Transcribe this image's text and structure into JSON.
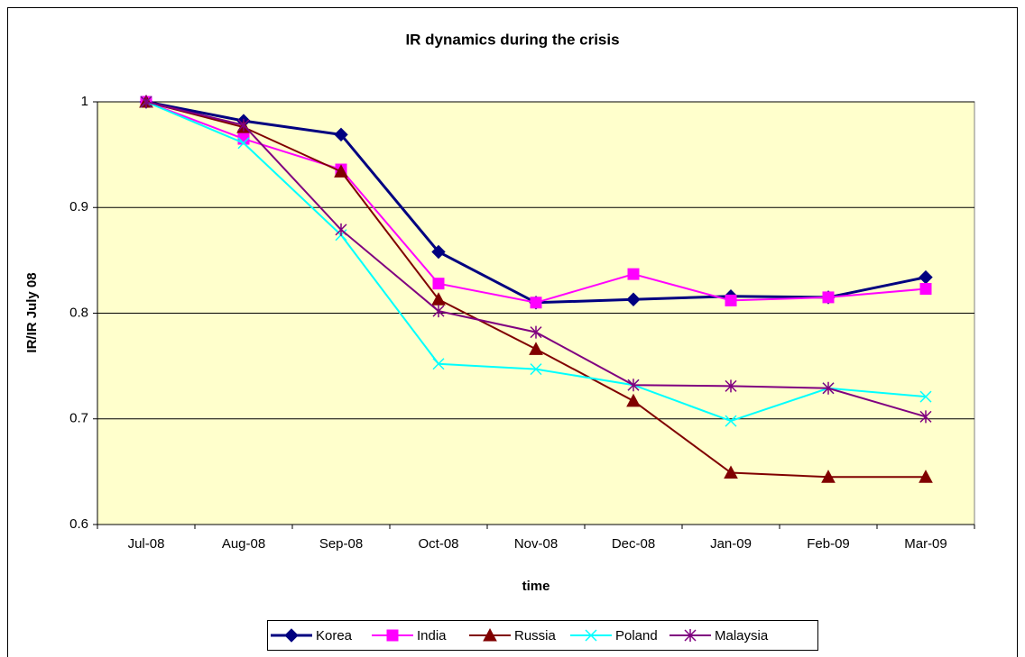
{
  "chart_data": {
    "type": "line",
    "title": "IR dynamics during the crisis",
    "x_label": "time",
    "y_label": "IR/IR July 08",
    "categories": [
      "Jul-08",
      "Aug-08",
      "Sep-08",
      "Oct-08",
      "Nov-08",
      "Dec-08",
      "Jan-09",
      "Feb-09",
      "Mar-09"
    ],
    "series": [
      {
        "name": "Korea",
        "color": "#000080",
        "marker": "diamond",
        "values": [
          1,
          0.982,
          0.969,
          0.858,
          0.81,
          0.813,
          0.816,
          0.815,
          0.834
        ]
      },
      {
        "name": "India",
        "color": "#ff00ff",
        "marker": "square",
        "values": [
          1,
          0.965,
          0.936,
          0.828,
          0.81,
          0.837,
          0.812,
          0.815,
          0.823
        ]
      },
      {
        "name": "Russia",
        "color": "#800000",
        "marker": "triangle",
        "values": [
          1,
          0.976,
          0.934,
          0.813,
          0.766,
          0.717,
          0.649,
          0.645,
          0.645
        ]
      },
      {
        "name": "Poland",
        "color": "#00ffff",
        "marker": "x",
        "values": [
          1,
          0.961,
          0.874,
          0.752,
          0.747,
          0.732,
          0.698,
          0.729,
          0.721
        ]
      },
      {
        "name": "Malaysia",
        "color": "#800080",
        "marker": "star",
        "values": [
          1,
          0.978,
          0.879,
          0.802,
          0.782,
          0.732,
          0.731,
          0.729,
          0.702
        ]
      }
    ],
    "ylim": [
      0.6,
      1
    ],
    "yticks": [
      0.6,
      0.7,
      0.8,
      0.9,
      1
    ],
    "grid": true,
    "plot_background": "#ffffcc",
    "legend": "bottom"
  }
}
